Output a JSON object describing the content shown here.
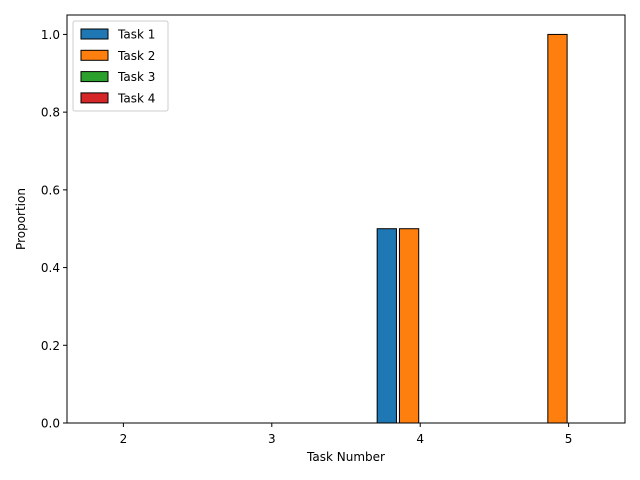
{
  "chart_data": {
    "type": "bar",
    "categories": [
      "2",
      "3",
      "4",
      "5"
    ],
    "series": [
      {
        "name": "Task 1",
        "color": "#1f77b4",
        "values": [
          0,
          0,
          0.5,
          0
        ]
      },
      {
        "name": "Task 2",
        "color": "#ff7f0e",
        "values": [
          0,
          0,
          0.5,
          1.0
        ]
      },
      {
        "name": "Task 3",
        "color": "#2ca02c",
        "values": [
          0,
          0,
          0,
          0
        ]
      },
      {
        "name": "Task 4",
        "color": "#d62728",
        "values": [
          0,
          0,
          0,
          0
        ]
      }
    ],
    "xlabel": "Task Number",
    "ylabel": "Proportion",
    "ylim": [
      0,
      1.05
    ],
    "yticks": [
      "0.0",
      "0.2",
      "0.4",
      "0.6",
      "0.8",
      "1.0"
    ],
    "legend_position": "top-left",
    "grid": false
  }
}
